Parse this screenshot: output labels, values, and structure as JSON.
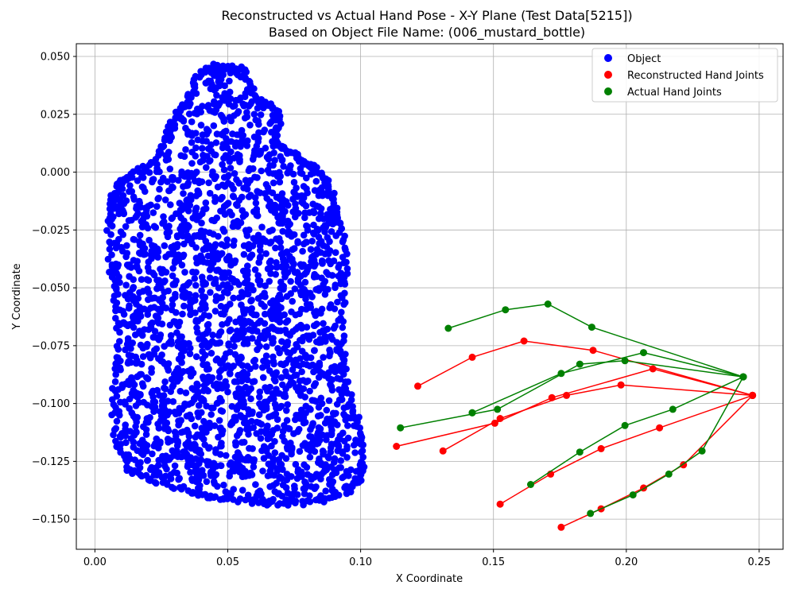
{
  "chart_data": {
    "type": "scatter",
    "title_line1": "Reconstructed vs Actual Hand Pose - X-Y Plane (Test Data[5215])",
    "title_line2": "Based on Object File Name: (006_mustard_bottle)",
    "xlabel": "X Coordinate",
    "ylabel": "Y Coordinate",
    "xlim": [
      -0.007,
      0.259
    ],
    "ylim": [
      -0.163,
      0.0555
    ],
    "x_ticks": [
      0.0,
      0.05,
      0.1,
      0.15,
      0.2,
      0.25
    ],
    "x_tick_labels": [
      "0.00",
      "0.05",
      "0.10",
      "0.15",
      "0.20",
      "0.25"
    ],
    "y_ticks": [
      0.05,
      0.025,
      0.0,
      -0.025,
      -0.05,
      -0.075,
      -0.1,
      -0.125,
      -0.15
    ],
    "y_tick_labels": [
      "0.050",
      "0.025",
      "0.000",
      "−0.025",
      "−0.050",
      "−0.075",
      "−0.100",
      "−0.125",
      "−0.150"
    ],
    "grid": true,
    "legend_position": "top-right",
    "legend": [
      "Object",
      "Reconstructed Hand Joints",
      "Actual Hand Joints"
    ],
    "colors": {
      "object": "#0000ff",
      "reconstructed": "#ff0000",
      "actual": "#008000",
      "grid": "#b0b0b0"
    },
    "object_outline": {
      "left": [
        [
          0.012,
          -0.128
        ],
        [
          0.008,
          -0.116
        ],
        [
          0.007,
          -0.1
        ],
        [
          0.008,
          -0.085
        ],
        [
          0.009,
          -0.07
        ],
        [
          0.008,
          -0.055
        ],
        [
          0.006,
          -0.04
        ],
        [
          0.005,
          -0.025
        ],
        [
          0.006,
          -0.012
        ],
        [
          0.009,
          -0.006
        ],
        [
          0.012,
          -0.002
        ],
        [
          0.017,
          0.001
        ],
        [
          0.022,
          0.005
        ],
        [
          0.026,
          0.012
        ],
        [
          0.028,
          0.02
        ],
        [
          0.031,
          0.026
        ],
        [
          0.035,
          0.03
        ],
        [
          0.037,
          0.038
        ],
        [
          0.04,
          0.043
        ],
        [
          0.044,
          0.046
        ],
        [
          0.05,
          0.045
        ]
      ],
      "right": [
        [
          0.05,
          0.045
        ],
        [
          0.055,
          0.045
        ],
        [
          0.058,
          0.04
        ],
        [
          0.06,
          0.032
        ],
        [
          0.064,
          0.03
        ],
        [
          0.067,
          0.028
        ],
        [
          0.069,
          0.024
        ],
        [
          0.069,
          0.018
        ],
        [
          0.068,
          0.012
        ],
        [
          0.071,
          0.01
        ],
        [
          0.075,
          0.008
        ],
        [
          0.078,
          0.005
        ],
        [
          0.08,
          0.003
        ],
        [
          0.083,
          0.002
        ],
        [
          0.086,
          -0.002
        ],
        [
          0.088,
          -0.006
        ],
        [
          0.09,
          -0.012
        ],
        [
          0.091,
          -0.02
        ],
        [
          0.093,
          -0.026
        ],
        [
          0.094,
          -0.035
        ],
        [
          0.094,
          -0.047
        ],
        [
          0.093,
          -0.06
        ],
        [
          0.093,
          -0.075
        ],
        [
          0.094,
          -0.088
        ],
        [
          0.096,
          -0.098
        ],
        [
          0.099,
          -0.108
        ],
        [
          0.101,
          -0.117
        ],
        [
          0.101,
          -0.127
        ],
        [
          0.099,
          -0.134
        ],
        [
          0.095,
          -0.139
        ],
        [
          0.088,
          -0.141
        ],
        [
          0.08,
          -0.143
        ],
        [
          0.072,
          -0.143
        ],
        [
          0.064,
          -0.143
        ],
        [
          0.056,
          -0.142
        ],
        [
          0.048,
          -0.141
        ],
        [
          0.04,
          -0.14
        ],
        [
          0.032,
          -0.137
        ],
        [
          0.024,
          -0.134
        ],
        [
          0.017,
          -0.131
        ],
        [
          0.012,
          -0.128
        ]
      ],
      "count": 2400
    },
    "reconstructed_chains": [
      [
        [
          0.2475,
          -0.0965
        ],
        [
          0.2215,
          -0.1265
        ],
        [
          0.2065,
          -0.1365
        ],
        [
          0.1905,
          -0.1455
        ],
        [
          0.1755,
          -0.1535
        ]
      ],
      [
        [
          0.2475,
          -0.0965
        ],
        [
          0.2125,
          -0.1105
        ],
        [
          0.1905,
          -0.1195
        ],
        [
          0.1715,
          -0.1305
        ],
        [
          0.1525,
          -0.1435
        ]
      ],
      [
        [
          0.2475,
          -0.0965
        ],
        [
          0.198,
          -0.092
        ],
        [
          0.1775,
          -0.0965
        ],
        [
          0.1525,
          -0.1065
        ],
        [
          0.131,
          -0.1205
        ]
      ],
      [
        [
          0.2475,
          -0.0965
        ],
        [
          0.21,
          -0.085
        ],
        [
          0.172,
          -0.0975
        ],
        [
          0.1505,
          -0.1085
        ],
        [
          0.1135,
          -0.1185
        ]
      ],
      [
        [
          0.2475,
          -0.0965
        ],
        [
          0.1875,
          -0.077
        ],
        [
          0.1615,
          -0.073
        ],
        [
          0.142,
          -0.08
        ],
        [
          0.1215,
          -0.0925
        ]
      ]
    ],
    "actual_chains": [
      [
        [
          0.244,
          -0.0885
        ],
        [
          0.2285,
          -0.1205
        ],
        [
          0.216,
          -0.1305
        ],
        [
          0.2025,
          -0.1395
        ],
        [
          0.1865,
          -0.1475
        ]
      ],
      [
        [
          0.244,
          -0.0885
        ],
        [
          0.2175,
          -0.1025
        ],
        [
          0.1995,
          -0.1095
        ],
        [
          0.1825,
          -0.121
        ],
        [
          0.164,
          -0.135
        ]
      ],
      [
        [
          0.244,
          -0.0885
        ],
        [
          0.1995,
          -0.0815
        ],
        [
          0.1825,
          -0.083
        ],
        [
          0.1515,
          -0.1025
        ],
        [
          0.115,
          -0.1105
        ]
      ],
      [
        [
          0.244,
          -0.0885
        ],
        [
          0.2065,
          -0.078
        ],
        [
          0.1755,
          -0.087
        ],
        [
          0.142,
          -0.104
        ],
        [
          0.142,
          -0.104
        ]
      ],
      [
        [
          0.244,
          -0.0885
        ],
        [
          0.187,
          -0.067
        ],
        [
          0.1705,
          -0.057
        ],
        [
          0.1545,
          -0.0595
        ],
        [
          0.133,
          -0.0675
        ]
      ]
    ]
  }
}
